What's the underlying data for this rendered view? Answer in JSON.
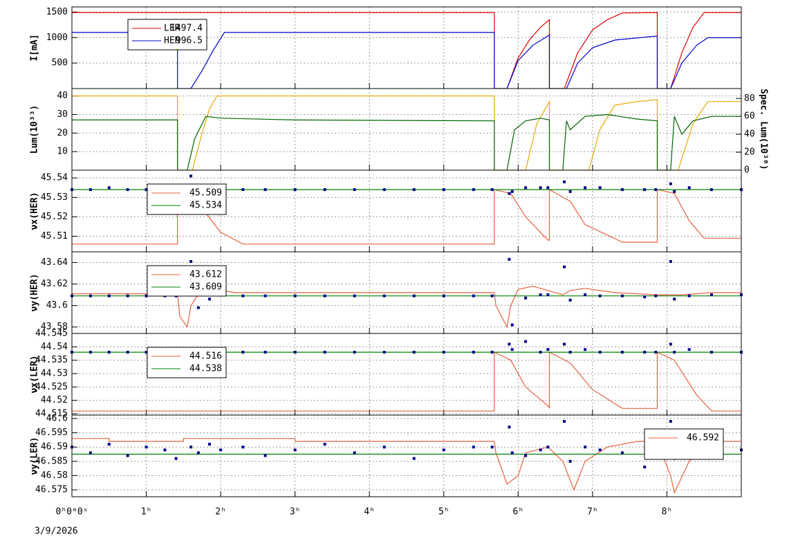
{
  "chart_data": [
    {
      "type": "line",
      "ylabel": "I[mA]",
      "ylim": [
        0,
        1600
      ],
      "yticks": [
        500,
        1000,
        1500
      ],
      "grid": true,
      "legend": "upper left",
      "series": [
        {
          "name": "LER",
          "color": "#e00000",
          "legend_value": 1497.4,
          "x": [
            0,
            5.68,
            5.68,
            5.85,
            6.0,
            6.15,
            6.3,
            6.42,
            6.42,
            6.62,
            6.8,
            7.0,
            7.2,
            7.4,
            7.87,
            7.87,
            8.05,
            8.2,
            8.35,
            8.5,
            9
          ],
          "values": [
            1490,
            1490,
            0,
            0,
            600,
            950,
            1200,
            1350,
            0,
            0,
            700,
            1150,
            1350,
            1480,
            1490,
            0,
            0,
            700,
            1200,
            1490,
            1490
          ]
        },
        {
          "name": "HER",
          "color": "#0000cc",
          "legend_value": 996.5,
          "x": [
            0,
            1.42,
            1.42,
            1.6,
            1.75,
            1.9,
            2.05,
            5.68,
            5.68,
            5.85,
            6.0,
            6.2,
            6.42,
            6.42,
            6.65,
            6.8,
            7.0,
            7.3,
            7.87,
            7.87,
            8.05,
            8.2,
            8.4,
            8.55,
            9
          ],
          "values": [
            1100,
            1100,
            0,
            0,
            350,
            750,
            1100,
            1100,
            0,
            0,
            550,
            850,
            1050,
            0,
            0,
            500,
            800,
            950,
            1030,
            0,
            0,
            500,
            850,
            996,
            996
          ]
        }
      ]
    },
    {
      "type": "line",
      "ylabel": "Lum(10³³)",
      "y2label": "Spec. Lum(10³⁰)",
      "ylim": [
        0,
        44
      ],
      "yticks": [
        10,
        20,
        30,
        40
      ],
      "y2lim": [
        0,
        91
      ],
      "y2ticks": [
        0,
        20,
        40,
        60,
        80
      ],
      "grid": true,
      "series": [
        {
          "color": "#e8a800",
          "x": [
            0,
            1.42,
            1.42,
            1.62,
            1.75,
            1.85,
            1.95,
            5.68,
            5.68,
            6.1,
            6.25,
            6.42,
            6.42,
            6.95,
            7.1,
            7.3,
            7.6,
            7.87,
            7.87,
            8.15,
            8.35,
            8.55,
            9
          ],
          "values": [
            40,
            40,
            0,
            0,
            20,
            33,
            40,
            40,
            0,
            0,
            25,
            37,
            0,
            0,
            22,
            35,
            37,
            38,
            0,
            0,
            25,
            37,
            37
          ]
        },
        {
          "color": "#006400",
          "axis": "y2",
          "x": [
            0,
            1.42,
            1.42,
            1.55,
            1.65,
            1.8,
            2.0,
            3.0,
            5.68,
            5.68,
            5.85,
            5.95,
            6.1,
            6.3,
            6.42,
            6.42,
            6.6,
            6.65,
            6.7,
            6.9,
            7.2,
            7.6,
            7.87,
            7.87,
            8.05,
            8.1,
            8.2,
            8.35,
            8.6,
            9
          ],
          "values": [
            56,
            56,
            0,
            0,
            35,
            60,
            58,
            56,
            55,
            0,
            0,
            45,
            55,
            58,
            56,
            0,
            0,
            55,
            45,
            60,
            62,
            57,
            55,
            0,
            0,
            60,
            40,
            55,
            60,
            60
          ]
        }
      ]
    },
    {
      "type": "line",
      "ylabel": "νx(HER)",
      "ylim": [
        45.502,
        45.544
      ],
      "yticks": [
        45.51,
        45.52,
        45.53,
        45.54
      ],
      "grid": true,
      "legend": "upper left",
      "series": [
        {
          "color": "#e8603c",
          "legend_value": 45.509,
          "x": [
            0,
            1.42,
            1.42,
            1.65,
            1.8,
            2.0,
            2.3,
            5.68,
            5.68,
            5.9,
            6.1,
            6.4,
            6.42,
            6.42,
            6.7,
            6.9,
            7.4,
            7.87,
            7.87,
            8.1,
            8.3,
            8.5,
            9
          ],
          "values": [
            45.506,
            45.506,
            45.534,
            45.534,
            45.522,
            45.512,
            45.506,
            45.506,
            45.534,
            45.532,
            45.52,
            45.508,
            45.508,
            45.534,
            45.528,
            45.516,
            45.507,
            45.507,
            45.534,
            45.532,
            45.518,
            45.509,
            45.509
          ]
        },
        {
          "color": "#008000",
          "legend_value": 45.534,
          "x": [
            0,
            9
          ],
          "values": [
            45.534,
            45.534
          ]
        },
        {
          "color": "#00008b",
          "style": "dots",
          "x": [
            0,
            0.25,
            0.5,
            0.75,
            1,
            1.25,
            1.4,
            1.6,
            1.7,
            1.85,
            2,
            2.3,
            2.6,
            3,
            3.4,
            3.8,
            4.2,
            4.6,
            5,
            5.4,
            5.65,
            5.88,
            5.92,
            6.1,
            6.3,
            6.4,
            6.62,
            6.7,
            6.9,
            7.1,
            7.4,
            7.7,
            7.85,
            8.05,
            8.1,
            8.3,
            8.6,
            9
          ],
          "values": [
            45.534,
            45.534,
            45.535,
            45.534,
            45.534,
            45.534,
            45.534,
            45.541,
            45.535,
            45.536,
            45.534,
            45.534,
            45.534,
            45.534,
            45.534,
            45.534,
            45.534,
            45.534,
            45.534,
            45.534,
            45.534,
            45.532,
            45.533,
            45.535,
            45.535,
            45.535,
            45.538,
            45.533,
            45.535,
            45.535,
            45.534,
            45.534,
            45.534,
            45.537,
            45.533,
            45.535,
            45.534,
            45.534
          ]
        }
      ]
    },
    {
      "type": "line",
      "ylabel": "νy(HER)",
      "ylim": [
        43.574,
        43.65
      ],
      "yticks": [
        43.58,
        43.6,
        43.62,
        43.64
      ],
      "grid": true,
      "legend": "upper left",
      "series": [
        {
          "color": "#e8603c",
          "legend_value": 43.612,
          "x": [
            0,
            1.42,
            1.45,
            1.55,
            1.6,
            1.7,
            2.0,
            2.2,
            3.0,
            5.68,
            5.7,
            5.85,
            5.9,
            6.0,
            6.2,
            6.4,
            6.6,
            6.7,
            6.9,
            7.3,
            7.87,
            8.05,
            8.2,
            8.6,
            9
          ],
          "values": [
            43.611,
            43.611,
            43.59,
            43.58,
            43.6,
            43.61,
            43.614,
            43.612,
            43.612,
            43.612,
            43.6,
            43.58,
            43.6,
            43.615,
            43.618,
            43.614,
            43.61,
            43.614,
            43.616,
            43.612,
            43.61,
            43.61,
            43.61,
            43.612,
            43.612
          ]
        },
        {
          "color": "#008000",
          "legend_value": 43.609,
          "x": [
            0,
            9
          ],
          "values": [
            43.609,
            43.609
          ]
        },
        {
          "color": "#00008b",
          "style": "dots",
          "x": [
            0,
            0.25,
            0.5,
            0.75,
            1,
            1.25,
            1.4,
            1.6,
            1.7,
            1.85,
            2,
            2.3,
            2.6,
            3,
            3.4,
            3.8,
            4.2,
            4.6,
            5,
            5.4,
            5.65,
            5.88,
            5.92,
            6.1,
            6.3,
            6.4,
            6.62,
            6.7,
            6.9,
            7.1,
            7.4,
            7.7,
            7.85,
            8.05,
            8.1,
            8.3,
            8.6,
            9
          ],
          "values": [
            43.609,
            43.609,
            43.609,
            43.609,
            43.609,
            43.609,
            43.609,
            43.641,
            43.598,
            43.606,
            43.612,
            43.609,
            43.609,
            43.609,
            43.609,
            43.609,
            43.609,
            43.609,
            43.609,
            43.609,
            43.609,
            43.643,
            43.582,
            43.607,
            43.61,
            43.61,
            43.636,
            43.605,
            43.61,
            43.609,
            43.609,
            43.608,
            43.609,
            43.641,
            43.606,
            43.609,
            43.61,
            43.61
          ]
        }
      ]
    },
    {
      "type": "line",
      "ylabel": "νx(LER)",
      "ylim": [
        44.5145,
        44.545
      ],
      "yticks": [
        44.515,
        44.52,
        44.525,
        44.53,
        44.535,
        44.54,
        44.545
      ],
      "grid": true,
      "legend": "upper left",
      "series": [
        {
          "color": "#e8603c",
          "legend_value": 44.516,
          "x": [
            0,
            5.68,
            5.68,
            5.9,
            6.1,
            6.4,
            6.42,
            6.42,
            6.7,
            7.0,
            7.4,
            7.87,
            7.87,
            8.1,
            8.4,
            8.6,
            9
          ],
          "values": [
            44.516,
            44.516,
            44.538,
            44.535,
            44.525,
            44.518,
            44.517,
            44.538,
            44.534,
            44.524,
            44.517,
            44.517,
            44.538,
            44.535,
            44.522,
            44.516,
            44.516
          ]
        },
        {
          "color": "#008000",
          "legend_value": 44.538,
          "x": [
            0,
            9
          ],
          "values": [
            44.538,
            44.538
          ]
        },
        {
          "color": "#00008b",
          "style": "dots",
          "x": [
            0,
            0.25,
            0.5,
            0.75,
            1,
            1.25,
            1.4,
            1.6,
            1.7,
            1.85,
            2,
            2.3,
            2.6,
            3,
            3.4,
            3.8,
            4.2,
            4.6,
            5,
            5.4,
            5.65,
            5.88,
            5.92,
            6.1,
            6.3,
            6.4,
            6.62,
            6.7,
            6.9,
            7.1,
            7.4,
            7.7,
            7.85,
            8.05,
            8.1,
            8.3,
            8.6,
            9
          ],
          "values": [
            44.538,
            44.538,
            44.538,
            44.538,
            44.538,
            44.538,
            44.538,
            44.538,
            44.538,
            44.538,
            44.538,
            44.538,
            44.538,
            44.538,
            44.538,
            44.538,
            44.538,
            44.538,
            44.538,
            44.538,
            44.538,
            44.541,
            44.539,
            44.542,
            44.538,
            44.539,
            44.541,
            44.538,
            44.539,
            44.538,
            44.538,
            44.538,
            44.538,
            44.541,
            44.538,
            44.539,
            44.538,
            44.538
          ]
        }
      ]
    },
    {
      "type": "line",
      "ylabel": "νy(LER)",
      "ylim": [
        46.5726,
        46.6012
      ],
      "yticks": [
        46.575,
        46.58,
        46.585,
        46.59,
        46.595,
        46.6
      ],
      "grid": true,
      "legend": "upper right",
      "xlim": [
        0,
        9
      ],
      "xticks": [
        {
          "value": 0,
          "label": "0ʰ0ᵐ0ˢ"
        },
        {
          "value": 1,
          "label": "1ʰ"
        },
        {
          "value": 2,
          "label": "2ʰ"
        },
        {
          "value": 3,
          "label": "3ʰ"
        },
        {
          "value": 4,
          "label": "4ʰ"
        },
        {
          "value": 5,
          "label": "5ʰ"
        },
        {
          "value": 6,
          "label": "6ʰ"
        },
        {
          "value": 7,
          "label": "7ʰ"
        },
        {
          "value": 8,
          "label": "8ʰ"
        }
      ],
      "date": "3/9/2026",
      "series": [
        {
          "color": "#e8603c",
          "legend_value": 46.592,
          "x": [
            0,
            0.5,
            0.5,
            1.5,
            1.5,
            3,
            3,
            5.68,
            5.7,
            5.85,
            6.0,
            6.1,
            6.4,
            6.6,
            6.75,
            6.9,
            7.2,
            7.6,
            7.87,
            8.05,
            8.1,
            8.3,
            8.6,
            9
          ],
          "values": [
            46.593,
            46.593,
            46.592,
            46.592,
            46.593,
            46.593,
            46.592,
            46.592,
            46.588,
            46.577,
            46.58,
            46.588,
            46.59,
            46.585,
            46.575,
            46.585,
            46.59,
            46.592,
            46.592,
            46.58,
            46.574,
            46.585,
            46.592,
            46.592
          ]
        },
        {
          "color": "#008000",
          "x": [
            0,
            9
          ],
          "values": [
            46.5875,
            46.5875
          ]
        },
        {
          "color": "#00008b",
          "style": "dots",
          "x": [
            0,
            0.25,
            0.5,
            0.75,
            1,
            1.25,
            1.4,
            1.6,
            1.7,
            1.85,
            2,
            2.3,
            2.6,
            3,
            3.4,
            3.8,
            4.2,
            4.6,
            5,
            5.4,
            5.65,
            5.88,
            5.92,
            6.1,
            6.3,
            6.4,
            6.62,
            6.7,
            6.9,
            7.1,
            7.4,
            7.7,
            7.85,
            8.05,
            8.1,
            8.3,
            8.6,
            9
          ],
          "values": [
            46.59,
            46.588,
            46.591,
            46.587,
            46.59,
            46.589,
            46.586,
            46.59,
            46.588,
            46.591,
            46.589,
            46.59,
            46.587,
            46.589,
            46.591,
            46.588,
            46.59,
            46.586,
            46.589,
            46.59,
            46.59,
            46.597,
            46.588,
            46.587,
            46.589,
            46.59,
            46.599,
            46.585,
            46.59,
            46.589,
            46.588,
            46.583,
            46.59,
            46.599,
            46.586,
            46.588,
            46.589,
            46.589
          ]
        }
      ]
    }
  ]
}
